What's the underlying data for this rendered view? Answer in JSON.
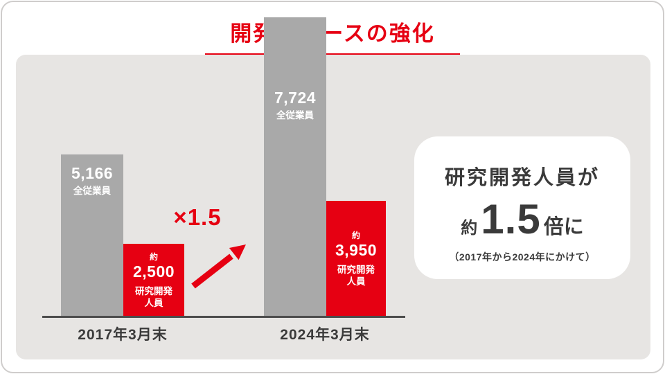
{
  "title": "開発リソースの強化",
  "chart_data": {
    "type": "bar",
    "title": "開発リソースの強化",
    "categories": [
      "2017年3月末",
      "2024年3月末"
    ],
    "series": [
      {
        "name": "全従業員",
        "values": [
          5166,
          7724
        ],
        "value_labels": [
          "5,166",
          "7,724"
        ],
        "color": "#a9a9a9"
      },
      {
        "name": "研究開発人員",
        "values": [
          2500,
          3950
        ],
        "value_labels": [
          "約2,500",
          "約3,950"
        ],
        "approx": true,
        "color": "#e60012"
      }
    ],
    "ylim": [
      0,
      7724
    ],
    "grid": false,
    "legend": "none",
    "annotation": "×1.5",
    "note": "研究開発人員が約1.5倍に（2017年から2024年にかけて）"
  },
  "bars": {
    "b2017_total": {
      "value": "5,166",
      "series": "全従業員"
    },
    "b2017_rd": {
      "approx": "約",
      "value": "2,500",
      "series_line1": "研究開発",
      "series_line2": "人員"
    },
    "b2024_total": {
      "value": "7,724",
      "series": "全従業員"
    },
    "b2024_rd": {
      "approx": "約",
      "value": "3,950",
      "series_line1": "研究開発",
      "series_line2": "人員"
    }
  },
  "axis": {
    "labels": [
      "2017年3月末",
      "2024年3月末"
    ]
  },
  "annotation": {
    "multiplier": "×1.5"
  },
  "callout": {
    "line1": "研究開発人員が",
    "approx": "約",
    "number": "1.5",
    "suffix": "倍に",
    "period": "（2017年から2024年にかけて）"
  },
  "colors": {
    "accent_red": "#e60012",
    "bar_gray": "#a9a9a9",
    "panel_bg": "#e7e5e3",
    "text_dark": "#3a3a3a",
    "baseline": "#4d4d4d",
    "card_bg": "#ffffff"
  }
}
